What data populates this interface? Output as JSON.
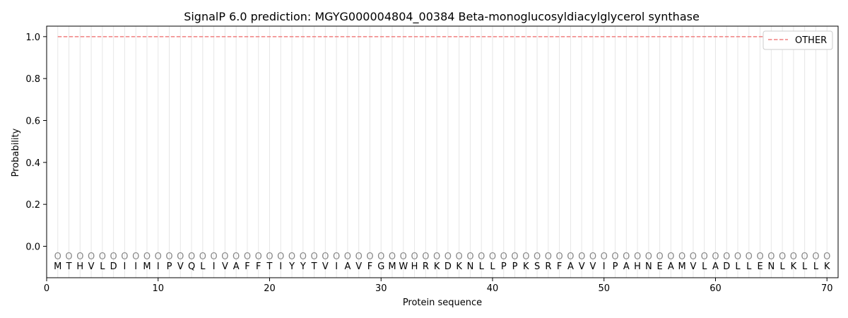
{
  "chart_data": {
    "type": "line",
    "title": "SignalP 6.0 prediction: MGYG000004804_00384 Beta-monoglucosyldiacylglycerol synthase",
    "xlabel": "Protein sequence",
    "ylabel": "Probability",
    "xlim": [
      0,
      71
    ],
    "ylim": [
      -0.15,
      1.05
    ],
    "xticks": [
      0,
      10,
      20,
      30,
      40,
      50,
      60,
      70
    ],
    "yticks": [
      0.0,
      0.2,
      0.4,
      0.6,
      0.8,
      1.0
    ],
    "ytick_labels": [
      "0.0",
      "0.2",
      "0.4",
      "0.6",
      "0.8",
      "1.0"
    ],
    "sequence": [
      "M",
      "T",
      "H",
      "V",
      "L",
      "D",
      "I",
      "I",
      "M",
      "I",
      "P",
      "V",
      "Q",
      "L",
      "I",
      "V",
      "A",
      "F",
      "F",
      "T",
      "I",
      "Y",
      "Y",
      "T",
      "V",
      "I",
      "A",
      "V",
      "F",
      "G",
      "M",
      "W",
      "H",
      "R",
      "K",
      "D",
      "K",
      "N",
      "L",
      "L",
      "P",
      "P",
      "K",
      "S",
      "R",
      "F",
      "A",
      "V",
      "V",
      "I",
      "P",
      "A",
      "H",
      "N",
      "E",
      "A",
      "M",
      "V",
      "L",
      "A",
      "D",
      "L",
      "L",
      "E",
      "N",
      "L",
      "K",
      "L",
      "L",
      "K"
    ],
    "predicted_label": "O",
    "predicted_label_y": -0.045,
    "series": [
      {
        "name": "OTHER",
        "x_start": 1,
        "x_end": 70,
        "value": 1.0,
        "color": "#f08080",
        "style": "dashed"
      }
    ],
    "legend_position": "top-right",
    "grid": "vertical lines at each residue",
    "colors": {
      "grid": "#e6e6e6",
      "label_o": "#888888"
    }
  }
}
